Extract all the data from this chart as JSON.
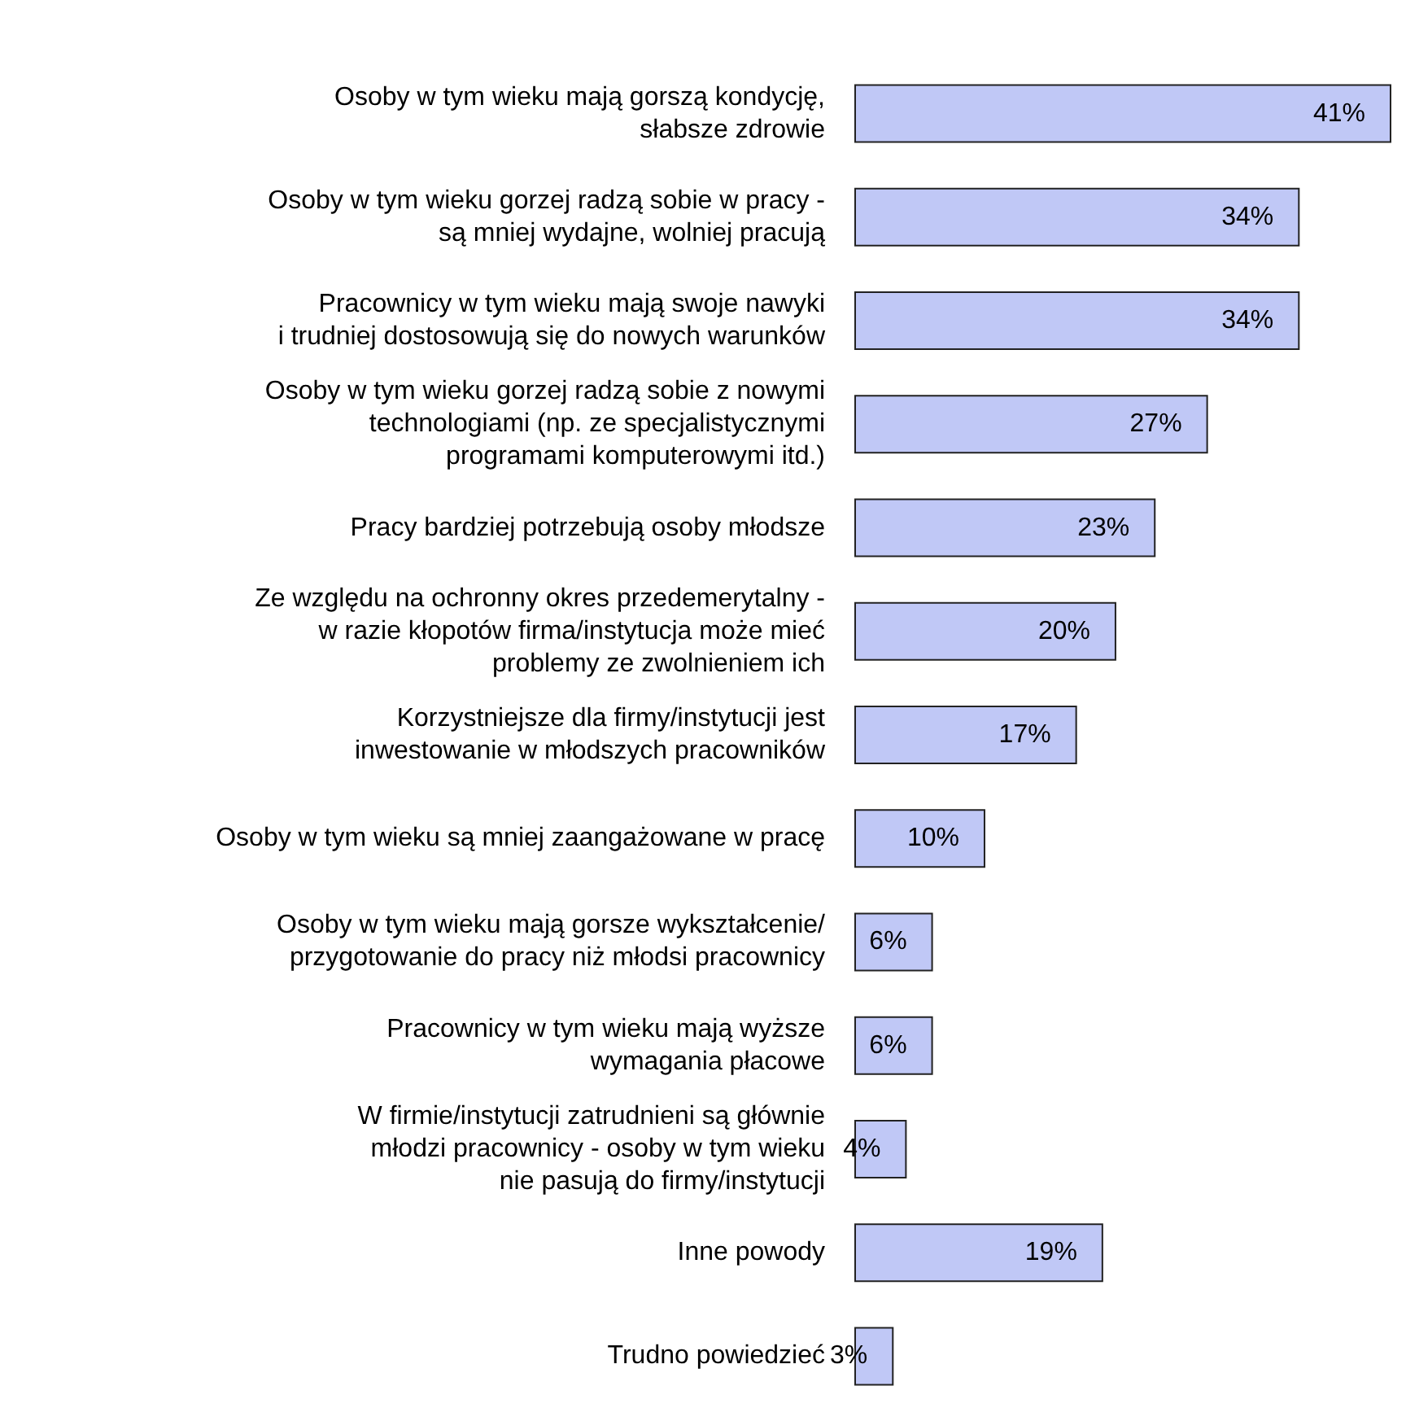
{
  "chart_data": {
    "type": "bar",
    "orientation": "horizontal",
    "categories": [
      "Osoby w tym wieku mają gorszą kondycję,\nsłabsze zdrowie",
      "Osoby w tym wieku gorzej radzą sobie w pracy -\nsą mniej wydajne, wolniej pracują",
      "Pracownicy w tym wieku mają swoje nawyki\ni trudniej dostosowują się do nowych warunków",
      "Osoby w tym wieku gorzej radzą sobie z nowymi\ntechnologiami (np. ze specjalistycznymi\nprogramami komputerowymi itd.)",
      "Pracy bardziej potrzebują osoby młodsze",
      "Ze względu na ochronny okres przedemerytalny -\nw razie kłopotów firma/instytucja może mieć\nproblemy ze zwolnieniem ich",
      "Korzystniejsze dla firmy/instytucji jest\ninwestowanie w młodszych pracowników",
      "Osoby w tym wieku są mniej zaangażowane w pracę",
      "Osoby w tym wieku mają gorsze wykształcenie/\nprzygotowanie do pracy niż młodsi pracownicy",
      "Pracownicy w tym wieku mają wyższe\nwymagania płacowe",
      "W firmie/instytucji zatrudnieni są głównie\nmłodzi pracownicy - osoby w tym wieku\nnie pasują do firmy/instytucji",
      "Inne powody",
      "Trudno powiedzieć"
    ],
    "values": [
      41,
      34,
      34,
      27,
      23,
      20,
      17,
      10,
      6,
      6,
      4,
      19,
      3
    ],
    "value_labels": [
      "41%",
      "34%",
      "34%",
      "27%",
      "23%",
      "20%",
      "17%",
      "10%",
      "6%",
      "6%",
      "4%",
      "19%",
      "3%"
    ],
    "color": "#c0c8f6"
  }
}
